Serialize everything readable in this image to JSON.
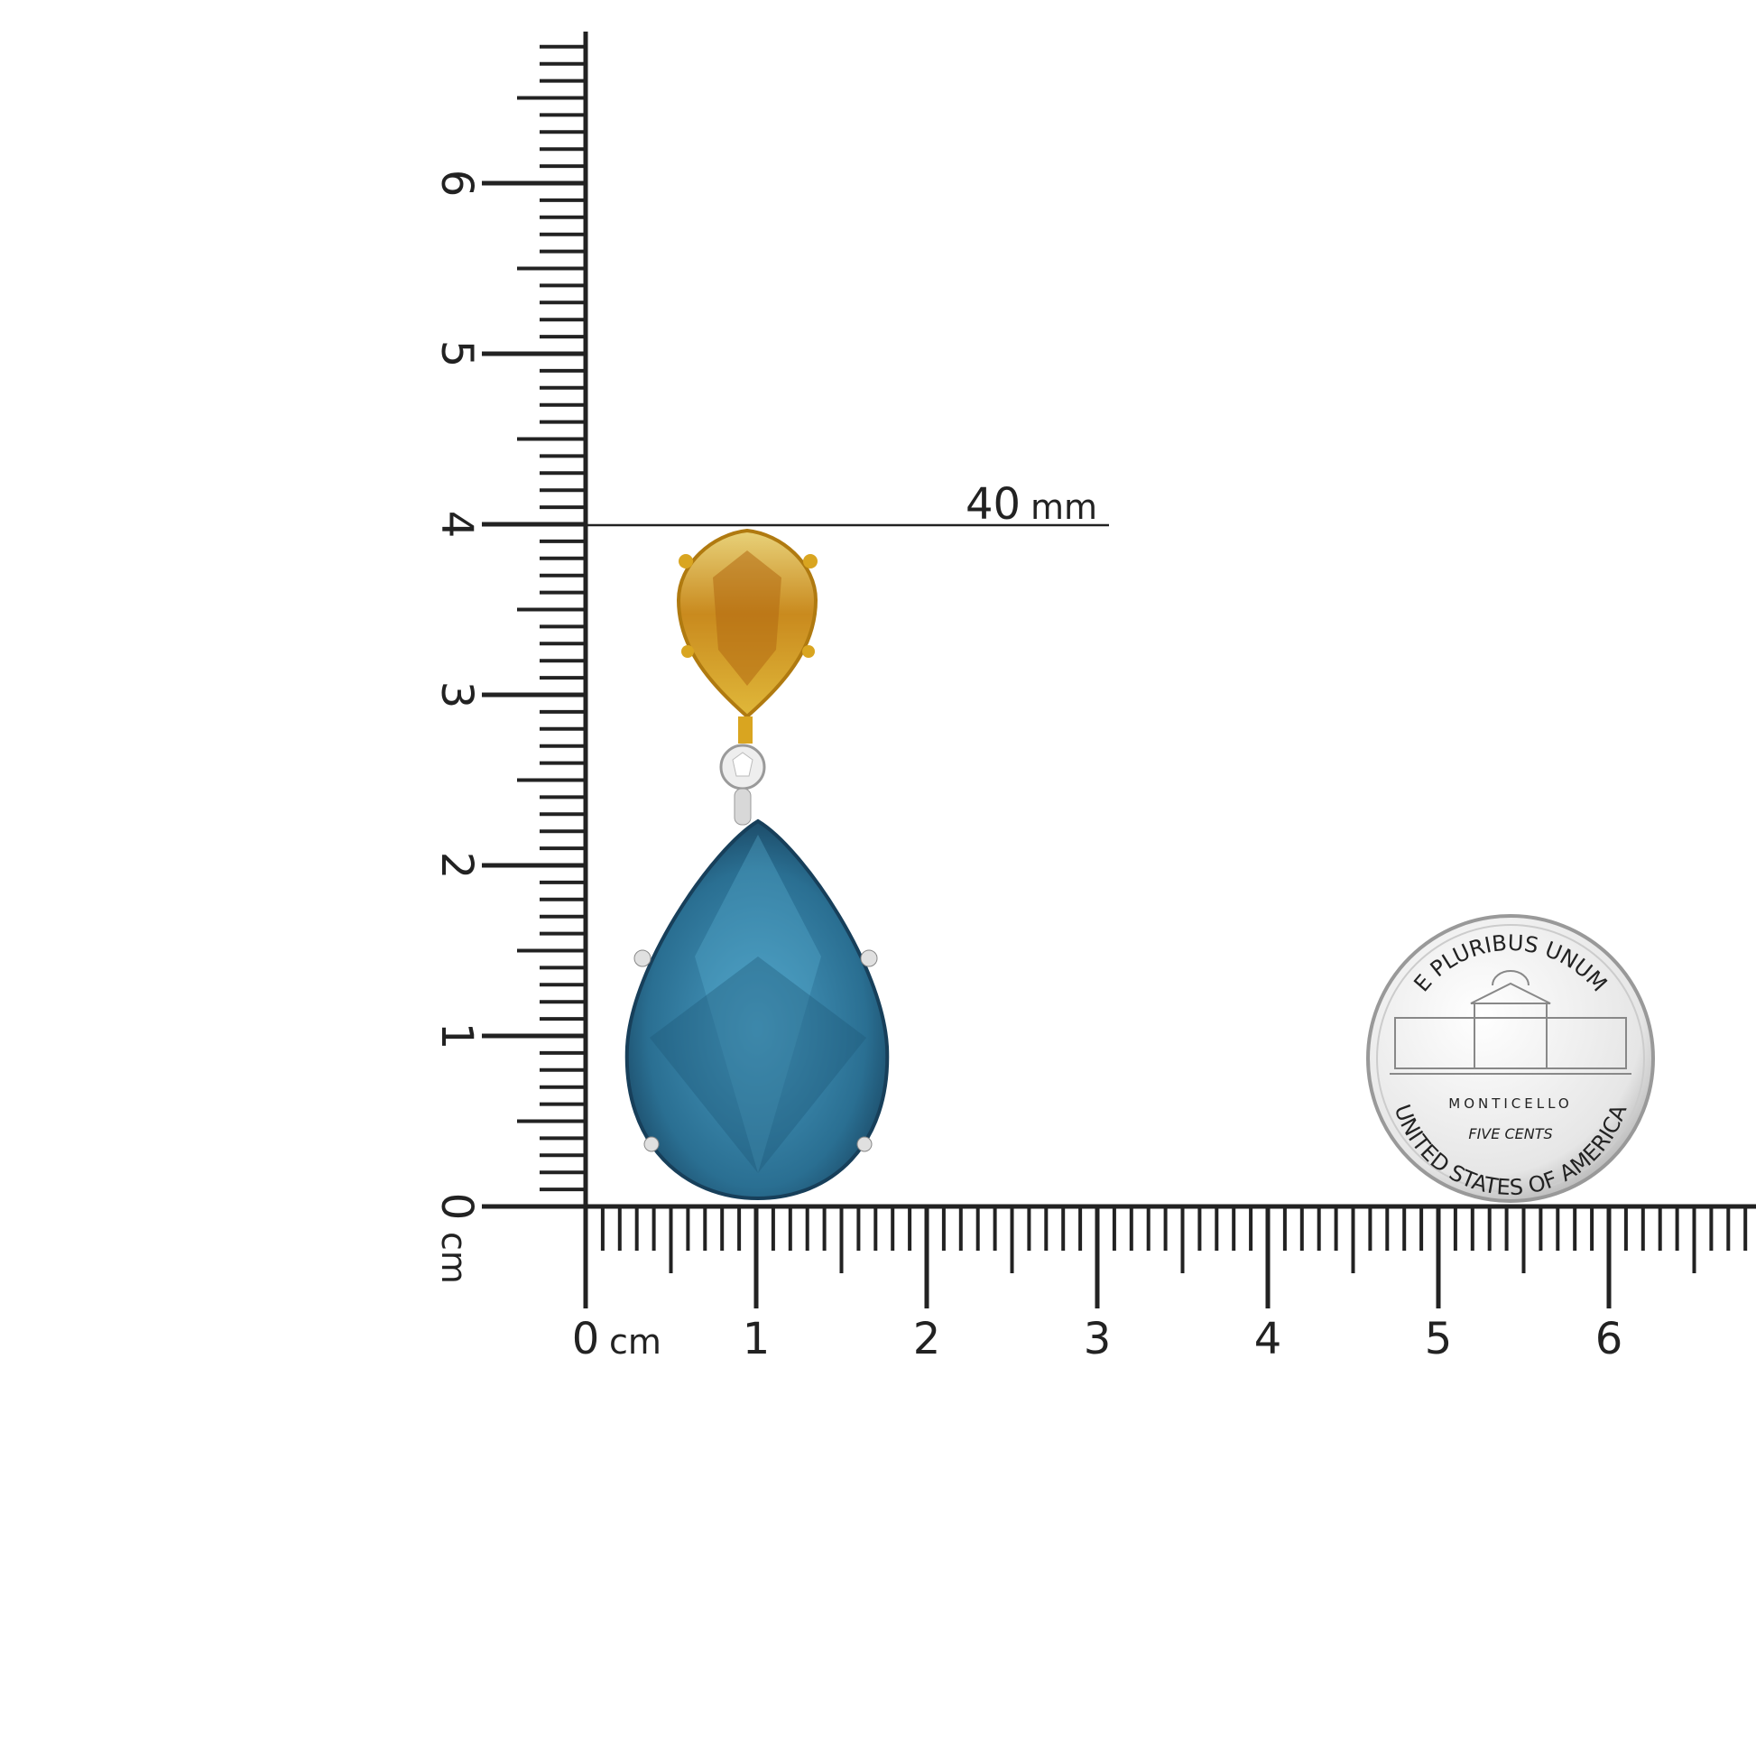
{
  "rulers": {
    "vertical_labels": [
      "0",
      "1",
      "2",
      "3",
      "4",
      "5",
      "6"
    ],
    "horizontal_labels": [
      "0",
      "1",
      "2",
      "3",
      "4",
      "5",
      "6"
    ],
    "unit": "cm",
    "tick_color": "#222222"
  },
  "measurement": {
    "value": "40",
    "unit": "mm"
  },
  "product": {
    "top_stone_color": "#c98a1e",
    "drop_stone_color": "#2f7ea3",
    "metal_color": "#d9a520"
  },
  "coin": {
    "top_legend": "E PLURIBUS UNUM",
    "building": "MONTICELLO",
    "denomination": "FIVE CENTS",
    "bottom_legend": "UNITED STATES OF AMERICA"
  }
}
